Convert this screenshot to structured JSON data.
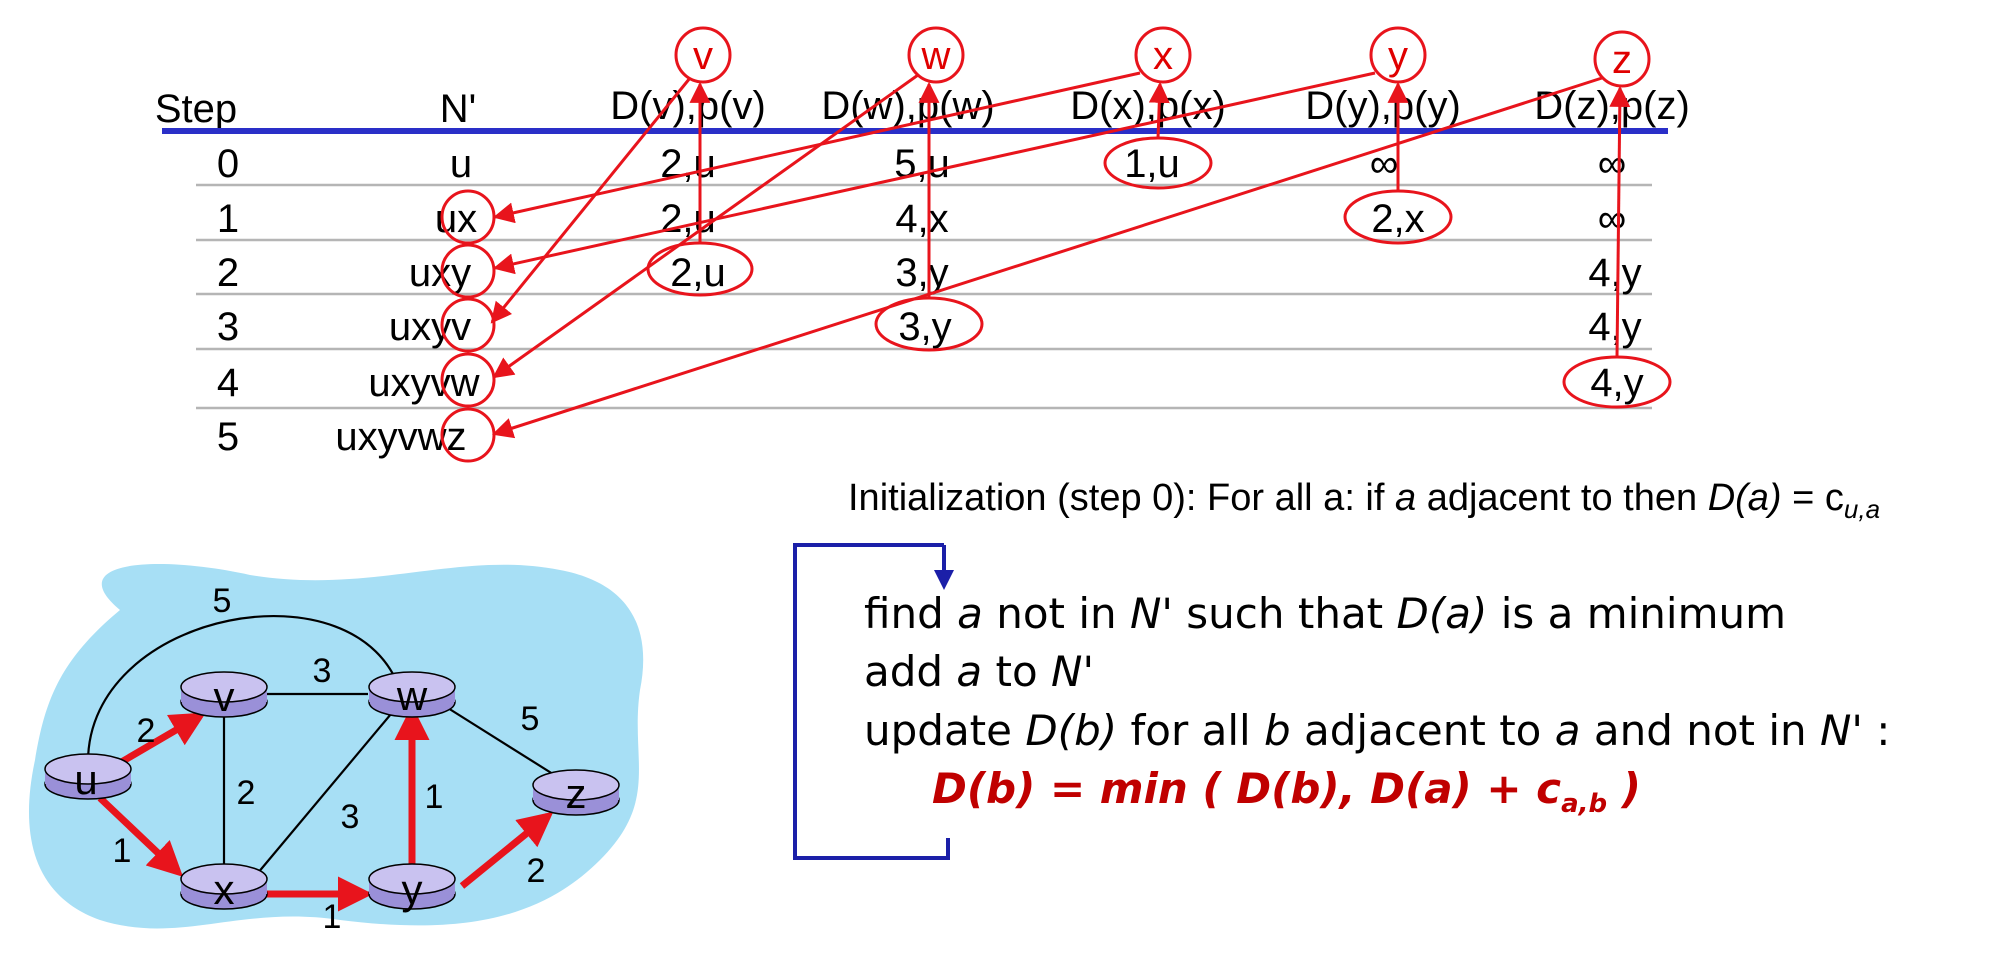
{
  "colors": {
    "red": "#e8141c",
    "blue": "#2a2fc8",
    "cloud": "#a7dff5",
    "node": "#c9c2f0",
    "frame": "#1b1fa8"
  },
  "table": {
    "headers": [
      "Step",
      "N'",
      "D(v),p(v)",
      "D(w),p(w)",
      "D(x),p(x)",
      "D(y),p(y)",
      "D(z),p(z)"
    ],
    "rows": [
      [
        "0",
        "u",
        "2,u",
        "5,u",
        "1,u",
        "∞",
        "∞"
      ],
      [
        "1",
        "ux",
        "2,u",
        "4,x",
        "",
        "2,x",
        "∞"
      ],
      [
        "2",
        "uxy",
        "2,u",
        "3,y",
        "",
        "",
        "4,y"
      ],
      [
        "3",
        "uxyv",
        "",
        "3,y",
        "",
        "",
        "4,y"
      ],
      [
        "4",
        "uxyvw",
        "",
        "",
        "",
        "",
        "4,y"
      ],
      [
        "5",
        "uxyvwz",
        "",
        "",
        "",
        "",
        ""
      ]
    ]
  },
  "top_labels": [
    "v",
    "w",
    "x",
    "y",
    "z"
  ],
  "init_text": {
    "a": "Initialization (step 0): For all a: if ",
    "b": "a",
    "c": " adjacent to then ",
    "d": "D(a)",
    "e": " = c",
    "f": "u,a"
  },
  "loop": {
    "line1": [
      "find ",
      "a",
      " not in ",
      "N'",
      " such that ",
      "D(a)",
      " is a minimum"
    ],
    "line2": [
      "add ",
      "a",
      " to ",
      "N'"
    ],
    "line3": [
      "update ",
      "D(b)",
      " for all ",
      "b",
      " adjacent to ",
      "a",
      " and not in ",
      "N'",
      " :"
    ],
    "eq_main": "D(b) = min ( D(b), D(a) + c",
    "eq_sub": "a,b",
    "eq_end": " )"
  },
  "graph": {
    "nodes": [
      "u",
      "v",
      "w",
      "x",
      "y",
      "z"
    ],
    "edge_weights": {
      "u-w": "5",
      "u-v": "2",
      "v-w": "3",
      "w-z": "5",
      "v-x": "2",
      "x-w": "3",
      "y-w": "1",
      "u-x": "1",
      "x-y": "1",
      "y-z": "2"
    }
  }
}
